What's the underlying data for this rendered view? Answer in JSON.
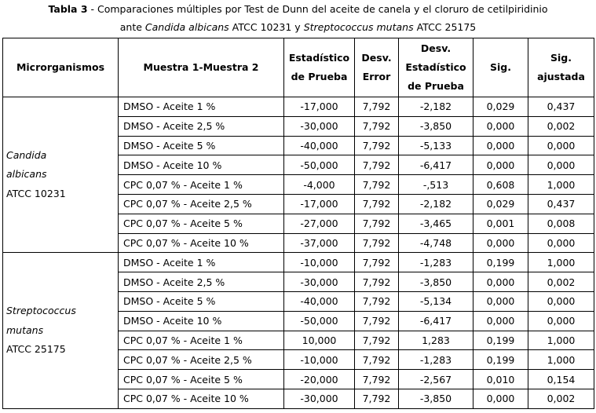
{
  "caption": {
    "table_label": "Tabla 3",
    "line1_rest": " - Comparaciones múltiples por Test de Dunn del aceite de canela y el cloruro de cetilpiridinio",
    "line2_pre": "ante ",
    "line2_it1": "Candida albicans",
    "line2_mid": " ATCC 10231 y ",
    "line2_it2": "Streptococcus mutans",
    "line2_post": " ATCC 25175"
  },
  "headers": {
    "col1": "Microrganismos",
    "col2": "Muestra 1-Muestra 2",
    "col3_a": "Estadístico",
    "col3_b": "de Prueba",
    "col4_a": "Desv.",
    "col4_b": "Error",
    "col5_a": "Desv.",
    "col5_b": "Estadístico",
    "col5_c": "de Prueba",
    "col6": "Sig.",
    "col7_a": "Sig.",
    "col7_b": "ajustada"
  },
  "groups": [
    {
      "org_it1": "Candida",
      "org_it2": "albicans",
      "org_code": "ATCC 10231",
      "rows": [
        {
          "pair": "DMSO - Aceite 1 %",
          "stat": "-17,000",
          "err": "7,792",
          "std": "-2,182",
          "sig": "0,029",
          "adj": "0,437"
        },
        {
          "pair": "DMSO - Aceite 2,5 %",
          "stat": "-30,000",
          "err": "7,792",
          "std": "-3,850",
          "sig": "0,000",
          "adj": "0,002"
        },
        {
          "pair": "DMSO - Aceite 5 %",
          "stat": "-40,000",
          "err": "7,792",
          "std": "-5,133",
          "sig": "0,000",
          "adj": "0,000"
        },
        {
          "pair": "DMSO - Aceite 10 %",
          "stat": "-50,000",
          "err": "7,792",
          "std": "-6,417",
          "sig": "0,000",
          "adj": "0,000"
        },
        {
          "pair": "CPC 0,07 % - Aceite 1 %",
          "stat": "-4,000",
          "err": "7,792",
          "std": "-,513",
          "sig": "0,608",
          "adj": "1,000"
        },
        {
          "pair": "CPC 0,07 % - Aceite 2,5 %",
          "stat": "-17,000",
          "err": "7,792",
          "std": "-2,182",
          "sig": "0,029",
          "adj": "0,437"
        },
        {
          "pair": "CPC 0,07 % - Aceite 5 %",
          "stat": "-27,000",
          "err": "7,792",
          "std": "-3,465",
          "sig": "0,001",
          "adj": "0,008"
        },
        {
          "pair": "CPC 0,07 % - Aceite 10 %",
          "stat": "-37,000",
          "err": "7,792",
          "std": "-4,748",
          "sig": "0,000",
          "adj": "0,000"
        }
      ]
    },
    {
      "org_it1": "Streptococcus",
      "org_it2": "mutans",
      "org_code": "ATCC 25175",
      "rows": [
        {
          "pair": "DMSO - Aceite 1 %",
          "stat": "-10,000",
          "err": "7,792",
          "std": "-1,283",
          "sig": "0,199",
          "adj": "1,000"
        },
        {
          "pair": "DMSO - Aceite 2,5 %",
          "stat": "-30,000",
          "err": "7,792",
          "std": "-3,850",
          "sig": "0,000",
          "adj": "0,002"
        },
        {
          "pair": "DMSO - Aceite 5 %",
          "stat": "-40,000",
          "err": "7,792",
          "std": "-5,134",
          "sig": "0,000",
          "adj": "0,000"
        },
        {
          "pair": "DMSO - Aceite 10 %",
          "stat": "-50,000",
          "err": "7,792",
          "std": "-6,417",
          "sig": "0,000",
          "adj": "0,000"
        },
        {
          "pair": "CPC 0,07 % - Aceite 1 %",
          "stat": "10,000",
          "err": "7,792",
          "std": "1,283",
          "sig": "0,199",
          "adj": "1,000"
        },
        {
          "pair": "CPC 0,07 % - Aceite 2,5 %",
          "stat": "-10,000",
          "err": "7,792",
          "std": "-1,283",
          "sig": "0,199",
          "adj": "1,000"
        },
        {
          "pair": "CPC 0,07 % - Aceite 5 %",
          "stat": "-20,000",
          "err": "7,792",
          "std": "-2,567",
          "sig": "0,010",
          "adj": "0,154"
        },
        {
          "pair": "CPC 0,07 % - Aceite 10 %",
          "stat": "-30,000",
          "err": "7,792",
          "std": "-3,850",
          "sig": "0,000",
          "adj": "0,002"
        }
      ]
    }
  ]
}
